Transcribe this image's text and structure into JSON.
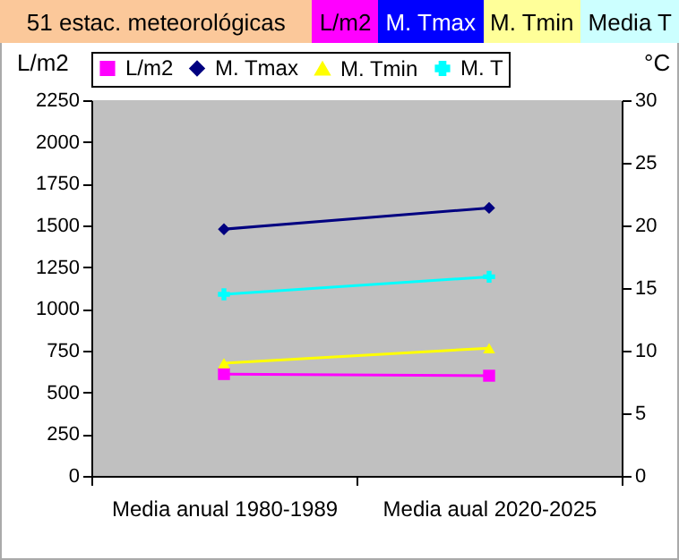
{
  "chart_data": {
    "type": "line",
    "title": "51 estac. meteorológicas",
    "annotations": [
      "L/m2",
      "M. Tmax",
      "M. Tmin",
      "Media T"
    ],
    "categories": [
      "Media anual 1980-1989",
      "Media aual 2020-2025"
    ],
    "ylabel": "L/m2",
    "y2label": "°C",
    "ylim": [
      0,
      2250
    ],
    "yticks": [
      0,
      250,
      500,
      750,
      1000,
      1250,
      1500,
      1750,
      2000,
      2250
    ],
    "y2lim": [
      0,
      30
    ],
    "y2ticks": [
      0,
      5,
      10,
      15,
      20,
      25,
      30
    ],
    "grid": false,
    "legend": "top",
    "series": [
      {
        "name": "L/m2",
        "color": "#ff00ff",
        "marker": "square",
        "values": [
          610,
          600
        ]
      },
      {
        "name": "M. Tmax",
        "color": "#000080",
        "marker": "diamond",
        "axis": "y2",
        "values": [
          19.7,
          21.4
        ]
      },
      {
        "name": "M. Tmin",
        "color": "#ffff00",
        "marker": "triangle",
        "axis": "y2",
        "values": [
          9.0,
          10.2
        ]
      },
      {
        "name": "M. T",
        "color": "#00ffff",
        "marker": "cross",
        "axis": "y2",
        "values": [
          14.5,
          15.9
        ]
      }
    ]
  }
}
